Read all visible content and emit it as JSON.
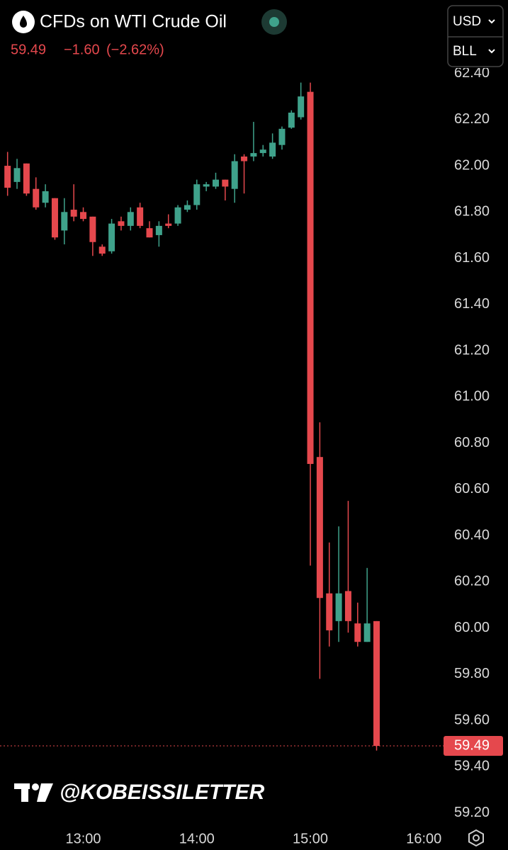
{
  "header": {
    "title": "CFDs on WTI Crude Oil",
    "change": "−1.60",
    "change_pct": "(−2.62%)",
    "currency": "USD",
    "unit": "BLL",
    "watermark": "@KOBEISSILETTER"
  },
  "chart_data": {
    "type": "candlestick",
    "up_color": "#3fa28b",
    "down_color": "#e5484d",
    "x": [
      740,
      745,
      750,
      755,
      760,
      765,
      770,
      775,
      780,
      785,
      790,
      795,
      800,
      805,
      810,
      815,
      820,
      825,
      830,
      835,
      840,
      845,
      850,
      855,
      860,
      865,
      870,
      875,
      880,
      885,
      890,
      895,
      900,
      905,
      910,
      915,
      920,
      925,
      930,
      935
    ],
    "open": [
      62.0,
      61.93,
      62.01,
      61.9,
      61.84,
      61.86,
      61.72,
      61.81,
      61.8,
      61.78,
      61.65,
      61.63,
      61.76,
      61.74,
      61.82,
      61.73,
      61.7,
      61.75,
      61.75,
      61.81,
      61.83,
      61.91,
      61.91,
      61.94,
      61.9,
      62.04,
      62.04,
      62.055,
      62.04,
      62.09,
      62.165,
      62.21,
      62.32,
      60.74,
      60.15,
      60.03,
      60.16,
      60.02,
      59.94,
      60.03
    ],
    "high": [
      62.06,
      62.03,
      62.01,
      61.95,
      61.92,
      61.86,
      61.86,
      61.92,
      61.82,
      61.78,
      61.66,
      61.77,
      61.78,
      61.82,
      61.84,
      61.76,
      61.76,
      61.79,
      61.83,
      61.85,
      61.94,
      61.93,
      61.97,
      61.94,
      62.05,
      62.05,
      62.19,
      62.09,
      62.14,
      62.17,
      62.24,
      62.36,
      62.36,
      60.89,
      60.37,
      60.44,
      60.55,
      60.11,
      60.26,
      60.03
    ],
    "low": [
      61.87,
      61.9,
      61.87,
      61.81,
      61.82,
      61.68,
      61.66,
      61.76,
      61.76,
      61.61,
      61.61,
      61.62,
      61.72,
      61.72,
      61.73,
      61.69,
      61.65,
      61.73,
      61.74,
      61.8,
      61.81,
      61.89,
      61.9,
      61.85,
      61.84,
      61.88,
      62.02,
      62.04,
      62.03,
      62.07,
      62.16,
      62.2,
      60.27,
      59.78,
      59.92,
      59.94,
      59.98,
      59.92,
      59.94,
      59.47
    ],
    "close": [
      61.905,
      61.99,
      61.88,
      61.82,
      61.89,
      61.69,
      61.8,
      61.78,
      61.77,
      61.67,
      61.62,
      61.75,
      61.74,
      61.8,
      61.74,
      61.69,
      61.74,
      61.74,
      61.82,
      61.83,
      61.92,
      61.92,
      61.94,
      61.91,
      62.02,
      62.02,
      62.055,
      62.07,
      62.1,
      62.16,
      62.23,
      62.3,
      60.71,
      60.13,
      59.99,
      60.15,
      60.03,
      59.94,
      60.02,
      59.49
    ],
    "xlim": [
      736,
      970
    ],
    "xticks": [
      {
        "value": 780,
        "label": "13:00"
      },
      {
        "value": 840,
        "label": "14:00"
      },
      {
        "value": 900,
        "label": "15:00"
      },
      {
        "value": 960,
        "label": "16:00"
      }
    ],
    "ylim": [
      59.15,
      62.42
    ],
    "yticks": [
      {
        "value": 62.4,
        "label": "62.40"
      },
      {
        "value": 62.2,
        "label": "62.20"
      },
      {
        "value": 62,
        "label": "62.00"
      },
      {
        "value": 61.8,
        "label": "61.80"
      },
      {
        "value": 61.6,
        "label": "61.60"
      },
      {
        "value": 61.4,
        "label": "61.40"
      },
      {
        "value": 61.2,
        "label": "61.20"
      },
      {
        "value": 61,
        "label": "61.00"
      },
      {
        "value": 60.8,
        "label": "60.80"
      },
      {
        "value": 60.6,
        "label": "60.60"
      },
      {
        "value": 60.4,
        "label": "60.40"
      },
      {
        "value": 60.2,
        "label": "60.20"
      },
      {
        "value": 60,
        "label": "60.00"
      },
      {
        "value": 59.8,
        "label": "59.80"
      },
      {
        "value": 59.6,
        "label": "59.60"
      },
      {
        "value": 59.4,
        "label": "59.40"
      },
      {
        "value": 59.2,
        "label": "59.20"
      }
    ]
  }
}
